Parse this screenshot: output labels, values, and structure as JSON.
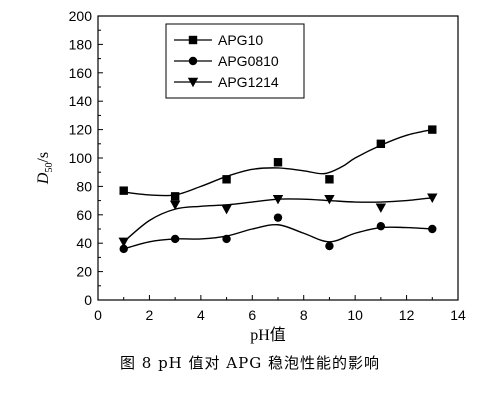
{
  "chart_data": {
    "type": "scatter",
    "xlabel": "pH值",
    "ylabel_main": "D",
    "ylabel_sub": "50",
    "ylabel_unit": "/s",
    "xlim": [
      0,
      14
    ],
    "ylim": [
      0,
      200
    ],
    "x_ticks": [
      0,
      2,
      4,
      6,
      8,
      10,
      12,
      14
    ],
    "y_ticks": [
      0,
      20,
      40,
      60,
      80,
      100,
      120,
      140,
      160,
      180,
      200
    ],
    "grid": false,
    "legend_position": "top-left",
    "series": [
      {
        "name": "APG10",
        "marker": "square",
        "x": [
          1,
          3,
          5,
          7,
          9,
          11,
          13
        ],
        "y": [
          77,
          73,
          85,
          97,
          85,
          110,
          120
        ],
        "curve": [
          [
            1,
            76
          ],
          [
            2,
            74
          ],
          [
            3,
            74
          ],
          [
            4,
            80
          ],
          [
            5,
            87
          ],
          [
            6,
            92
          ],
          [
            7,
            93
          ],
          [
            8,
            91
          ],
          [
            8.8,
            89
          ],
          [
            9.5,
            94
          ],
          [
            10,
            100
          ],
          [
            11,
            109
          ],
          [
            12,
            116
          ],
          [
            13,
            120
          ]
        ]
      },
      {
        "name": "APG0810",
        "marker": "circle",
        "x": [
          1,
          3,
          5,
          7,
          9,
          11,
          13
        ],
        "y": [
          36,
          43,
          43,
          58,
          38,
          52,
          50
        ],
        "curve": [
          [
            1,
            36
          ],
          [
            2,
            41
          ],
          [
            3,
            43
          ],
          [
            4,
            43
          ],
          [
            5,
            45
          ],
          [
            6,
            50
          ],
          [
            7,
            53
          ],
          [
            8,
            47
          ],
          [
            9,
            41
          ],
          [
            10,
            47
          ],
          [
            11,
            51
          ],
          [
            12,
            51
          ],
          [
            13,
            50
          ]
        ]
      },
      {
        "name": "APG1214",
        "marker": "triangle-down",
        "x": [
          1,
          3,
          5,
          7,
          9,
          11,
          13
        ],
        "y": [
          41,
          67,
          64,
          71,
          71,
          65,
          72
        ],
        "curve": [
          [
            1,
            41
          ],
          [
            2,
            56
          ],
          [
            3,
            64
          ],
          [
            4,
            66
          ],
          [
            5,
            67
          ],
          [
            6,
            69
          ],
          [
            7,
            71
          ],
          [
            8,
            71
          ],
          [
            9,
            70
          ],
          [
            10,
            69
          ],
          [
            11,
            69
          ],
          [
            12,
            70
          ],
          [
            13,
            72
          ]
        ]
      }
    ]
  },
  "caption": "图 8   pH 值对 APG 稳泡性能的影响"
}
